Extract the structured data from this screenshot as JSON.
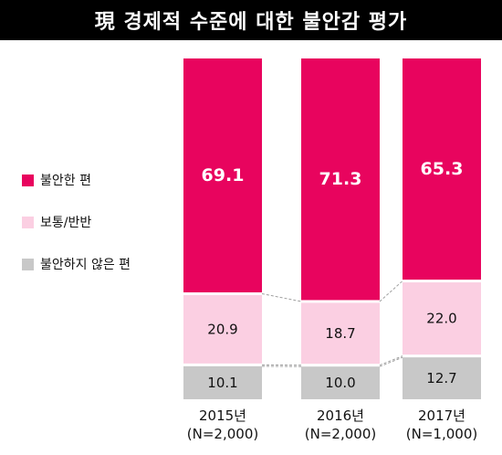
{
  "chart_data": {
    "type": "bar",
    "stacked": true,
    "percent": true,
    "title": "現 경제적 수준에 대한 불안감 평가",
    "categories": [
      "2015년",
      "2016년",
      "2017년"
    ],
    "category_notes": [
      "(N=2,000)",
      "(N=2,000)",
      "(N=1,000)"
    ],
    "series": [
      {
        "name": "불안한 편",
        "color": "#e8045e",
        "values": [
          69.1,
          71.3,
          65.3
        ]
      },
      {
        "name": "보통/반반",
        "color": "#fbcfe2",
        "values": [
          20.9,
          18.7,
          22.0
        ]
      },
      {
        "name": "불안하지 않은 편",
        "color": "#c8c8c8",
        "values": [
          10.1,
          10.0,
          12.7
        ]
      }
    ],
    "value_labels": [
      [
        "69.1",
        "71.3",
        "65.3"
      ],
      [
        "20.9",
        "18.7",
        "22.0"
      ],
      [
        "10.1",
        "10.0",
        "12.7"
      ]
    ],
    "ylim": [
      0,
      100
    ],
    "legend_position": "left",
    "grid": false
  }
}
